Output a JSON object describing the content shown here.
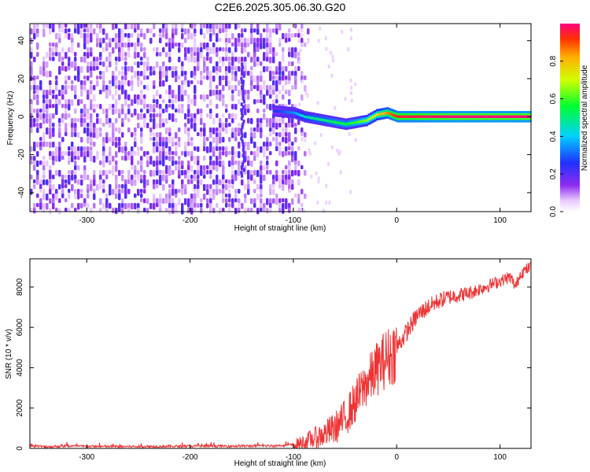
{
  "title": "C2E6.2025.305.06.30.G20",
  "chart_data": [
    {
      "type": "heatmap",
      "id": "spectrogram",
      "xlabel": "Height of straight line (km)",
      "ylabel": "Frequency (Hz)",
      "xlim": [
        -355,
        130
      ],
      "ylim": [
        -50,
        49
      ],
      "xticks": [
        -300,
        -200,
        -100,
        0,
        100
      ],
      "yticks": [
        -40,
        -20,
        0,
        20,
        40
      ],
      "xtick_labels": [
        "-300",
        "-200",
        "-100",
        "0",
        "100"
      ],
      "ytick_labels": [
        "-40",
        "-20",
        "0",
        "20",
        "40"
      ],
      "noise_region": {
        "x_start": -355,
        "x_end": -100,
        "typical_amplitude": 0.12
      },
      "signal_track": {
        "description": "narrow band near 0 Hz",
        "x": [
          -120,
          -100,
          -90,
          -80,
          -70,
          -60,
          -50,
          -40,
          -30,
          -20,
          -10,
          0,
          50,
          100,
          130
        ],
        "y": [
          3,
          2,
          0,
          -1,
          -2,
          -3,
          -4,
          -3,
          -2,
          1,
          2,
          0,
          0,
          0,
          0
        ],
        "amplitude": [
          0.25,
          0.35,
          0.45,
          0.5,
          0.5,
          0.55,
          0.55,
          0.6,
          0.65,
          0.75,
          0.85,
          0.95,
          1.0,
          1.0,
          1.0
        ]
      },
      "colorbar": {
        "label": "Normalized spectral amplitude",
        "ticks": [
          0.0,
          0.2,
          0.4,
          0.6,
          0.8
        ],
        "tick_labels": [
          "0.0",
          "0.2",
          "0.4",
          "0.6",
          "0.8"
        ],
        "range": [
          0,
          1
        ]
      }
    },
    {
      "type": "line",
      "id": "snr",
      "xlabel": "Height of straight line (km)",
      "ylabel": "SNR (10 * v/v)",
      "xlim": [
        -355,
        130
      ],
      "ylim": [
        0,
        9400
      ],
      "xticks": [
        -300,
        -200,
        -100,
        0,
        100
      ],
      "yticks": [
        0,
        2000,
        4000,
        6000,
        8000
      ],
      "xtick_labels": [
        "-300",
        "-200",
        "-100",
        "0",
        "100"
      ],
      "ytick_labels": [
        "0",
        "2000",
        "4000",
        "6000",
        "8000"
      ],
      "series": [
        {
          "name": "SNR",
          "color": "#ee3333",
          "x": [
            -355,
            -340,
            -320,
            -300,
            -250,
            -200,
            -150,
            -120,
            -100,
            -90,
            -80,
            -70,
            -60,
            -50,
            -40,
            -30,
            -25,
            -20,
            -15,
            -10,
            -5,
            0,
            10,
            20,
            30,
            40,
            50,
            60,
            70,
            80,
            90,
            100,
            110,
            115,
            120,
            130
          ],
          "y": [
            150,
            80,
            120,
            100,
            90,
            110,
            120,
            130,
            180,
            300,
            500,
            700,
            1000,
            1500,
            2300,
            3200,
            3500,
            3900,
            4200,
            4500,
            4600,
            5000,
            5800,
            6600,
            7000,
            7300,
            7500,
            7600,
            7700,
            7900,
            8100,
            8300,
            8500,
            8000,
            8700,
            9000
          ]
        }
      ]
    }
  ]
}
